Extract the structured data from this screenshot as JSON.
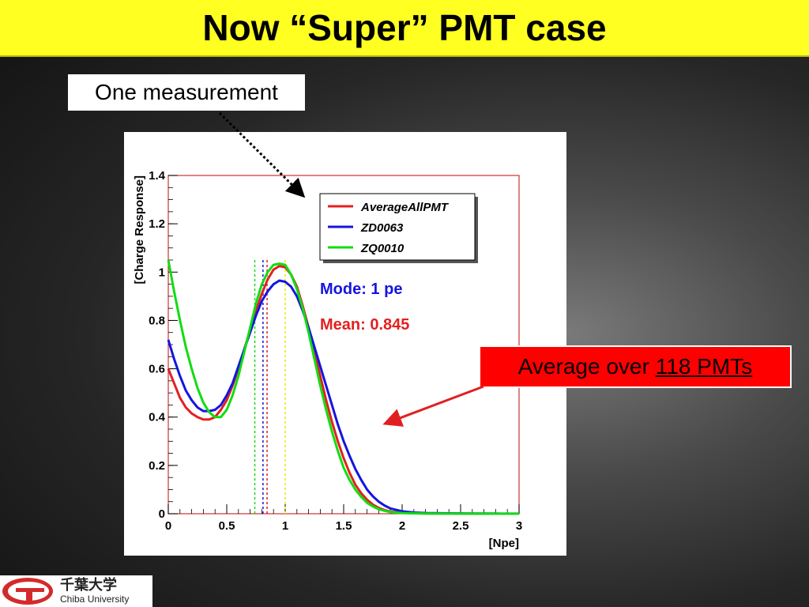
{
  "slide": {
    "title": "Now “Super” PMT case",
    "callout_one": "One measurement",
    "callout_avg_prefix": "Average over",
    "callout_avg_link": "118 PMTs"
  },
  "logo": {
    "jp": "千葉大学",
    "en": "Chiba University",
    "colors": {
      "mark": "#d42a2a"
    }
  },
  "chart_data": {
    "type": "line",
    "xlabel": "[Npe]",
    "ylabel": "[Charge Response]",
    "xlim": [
      0,
      3
    ],
    "ylim": [
      0,
      1.4
    ],
    "xticks": [
      0,
      0.5,
      1,
      1.5,
      2,
      2.5,
      3
    ],
    "xtick_labels": [
      "0",
      "0.5",
      "1",
      "1.5",
      "2",
      "2.5",
      "3"
    ],
    "yticks": [
      0,
      0.2,
      0.4,
      0.6,
      0.8,
      1,
      1.2,
      1.4
    ],
    "ytick_labels": [
      "0",
      "0.2",
      "0.4",
      "0.6",
      "0.8",
      "1",
      "1.2",
      "1.4"
    ],
    "legend_position": "top-right",
    "series": [
      {
        "name": "AverageAllPMT",
        "color": "#e32020",
        "x": [
          0,
          0.05,
          0.1,
          0.15,
          0.2,
          0.25,
          0.3,
          0.35,
          0.4,
          0.45,
          0.5,
          0.55,
          0.6,
          0.65,
          0.7,
          0.75,
          0.8,
          0.85,
          0.9,
          0.95,
          1.0,
          1.05,
          1.1,
          1.15,
          1.2,
          1.25,
          1.3,
          1.35,
          1.4,
          1.45,
          1.5,
          1.55,
          1.6,
          1.65,
          1.7,
          1.75,
          1.8,
          1.85,
          1.9,
          2.0,
          2.1,
          2.2,
          2.4,
          2.6,
          2.8,
          3.0
        ],
        "y": [
          0.6,
          0.54,
          0.48,
          0.44,
          0.415,
          0.4,
          0.39,
          0.39,
          0.4,
          0.43,
          0.47,
          0.53,
          0.6,
          0.68,
          0.76,
          0.84,
          0.91,
          0.97,
          1.01,
          1.025,
          1.02,
          0.99,
          0.94,
          0.86,
          0.77,
          0.67,
          0.57,
          0.47,
          0.38,
          0.3,
          0.23,
          0.17,
          0.12,
          0.085,
          0.058,
          0.038,
          0.024,
          0.015,
          0.009,
          0.004,
          0.002,
          0.001,
          0.0005,
          0.0002,
          0.0001,
          0.0
        ]
      },
      {
        "name": "ZD0063",
        "color": "#1515e0",
        "x": [
          0,
          0.05,
          0.1,
          0.15,
          0.2,
          0.25,
          0.3,
          0.35,
          0.4,
          0.45,
          0.5,
          0.55,
          0.6,
          0.65,
          0.7,
          0.75,
          0.8,
          0.85,
          0.9,
          0.95,
          1.0,
          1.05,
          1.1,
          1.15,
          1.2,
          1.25,
          1.3,
          1.35,
          1.4,
          1.45,
          1.5,
          1.55,
          1.6,
          1.65,
          1.7,
          1.75,
          1.8,
          1.85,
          1.9,
          2.0,
          2.1,
          2.2,
          2.4,
          2.6,
          2.8,
          3.0
        ],
        "y": [
          0.72,
          0.64,
          0.57,
          0.51,
          0.47,
          0.44,
          0.425,
          0.425,
          0.43,
          0.45,
          0.49,
          0.54,
          0.61,
          0.68,
          0.75,
          0.82,
          0.88,
          0.92,
          0.95,
          0.965,
          0.96,
          0.94,
          0.9,
          0.84,
          0.77,
          0.69,
          0.61,
          0.53,
          0.45,
          0.37,
          0.3,
          0.24,
          0.185,
          0.14,
          0.1,
          0.072,
          0.05,
          0.034,
          0.022,
          0.01,
          0.005,
          0.003,
          0.0015,
          0.001,
          0.0005,
          0.0002
        ]
      },
      {
        "name": "ZQ0010",
        "color": "#11dd11",
        "x": [
          0,
          0.05,
          0.1,
          0.15,
          0.2,
          0.25,
          0.3,
          0.35,
          0.4,
          0.45,
          0.5,
          0.55,
          0.6,
          0.65,
          0.7,
          0.75,
          0.8,
          0.85,
          0.9,
          0.95,
          1.0,
          1.05,
          1.1,
          1.15,
          1.2,
          1.25,
          1.3,
          1.35,
          1.4,
          1.45,
          1.5,
          1.55,
          1.6,
          1.65,
          1.7,
          1.75,
          1.8,
          1.85,
          1.9,
          2.0,
          2.1,
          2.2,
          2.4,
          2.6,
          2.8,
          3.0
        ],
        "y": [
          1.05,
          0.92,
          0.8,
          0.69,
          0.6,
          0.52,
          0.46,
          0.42,
          0.4,
          0.4,
          0.43,
          0.49,
          0.57,
          0.67,
          0.77,
          0.87,
          0.95,
          1.0,
          1.03,
          1.035,
          1.03,
          0.99,
          0.93,
          0.85,
          0.75,
          0.64,
          0.53,
          0.43,
          0.34,
          0.26,
          0.19,
          0.14,
          0.1,
          0.07,
          0.045,
          0.03,
          0.019,
          0.012,
          0.007,
          0.003,
          0.0015,
          0.001,
          0.0004,
          0.0002,
          0.0001,
          0.0
        ]
      }
    ],
    "vlines": [
      {
        "x": 0.74,
        "color": "#11dd11"
      },
      {
        "x": 0.81,
        "color": "#1515e0"
      },
      {
        "x": 0.845,
        "color": "#e32020"
      },
      {
        "x": 1.0,
        "color": "#e8e800"
      }
    ],
    "annotations": [
      {
        "text": "Mode: 1 pe",
        "color": "#1515e0"
      },
      {
        "text": "Mean: 0.845",
        "color": "#e32020"
      }
    ],
    "frame_color": "#cc3333"
  }
}
